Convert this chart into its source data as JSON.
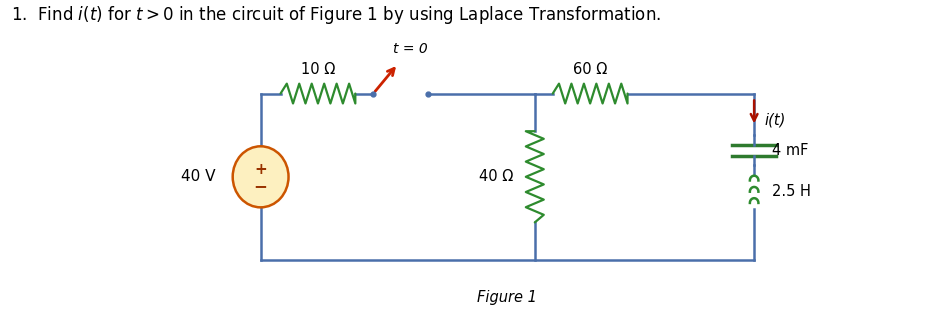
{
  "title": "1.  Find $i(t)$ for $t > 0$ in the circuit of Figure 1 by using Laplace Transformation.",
  "figure_label": "Figure 1",
  "bg_color": "#ffffff",
  "wire_color": "#4a6faa",
  "resistor_color": "#2e8b2e",
  "inductor_color": "#2e8b2e",
  "switch_blade_color": "#cc2200",
  "current_arrow_color": "#aa1100",
  "source_fill": "#fdf0c0",
  "source_edge": "#cc5500",
  "source_text_color": "#993300",
  "cap_color": "#2e7a2e",
  "resistor_10_label": "10 Ω",
  "resistor_60_label": "60 Ω",
  "resistor_40_label": "40 Ω",
  "capacitor_label": "4 mF",
  "inductor_label": "2.5 H",
  "voltage_label": "40 V",
  "switch_label": "t = 0",
  "current_label": "i(t)"
}
